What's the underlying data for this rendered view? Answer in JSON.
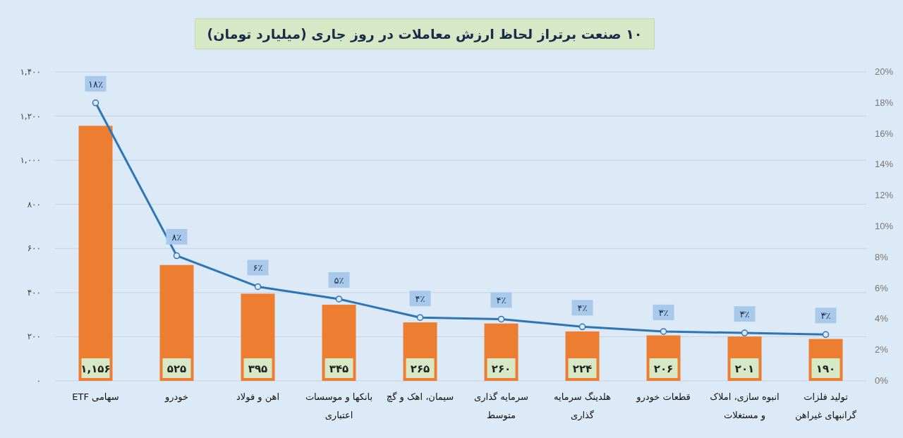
{
  "chart_data": {
    "type": "bar",
    "title": "۱۰ صنعت برتراز لحاظ ارزش معاملات در روز جاری (میلیارد تومان)",
    "categories": [
      "سهامی ETF",
      "خودرو",
      "اهن و فولاد",
      "بانکها و موسسات اعتباری",
      "سیمان، اهک و گچ",
      "سرمایه گذاری متوسط",
      "هلدینگ سرمایه گذاری",
      "قطعات خودرو",
      "انبوه سازی، املاک و مستغلات",
      "تولید فلزات گرانبهای غیراهن"
    ],
    "series": [
      {
        "type": "bar",
        "color": "#ed7d31",
        "values": [
          1156,
          525,
          395,
          345,
          265,
          260,
          224,
          206,
          201,
          190
        ],
        "value_labels": [
          "۱,۱۵۶",
          "۵۲۵",
          "۳۹۵",
          "۳۴۵",
          "۲۶۵",
          "۲۶۰",
          "۲۲۴",
          "۲۰۶",
          "۲۰۱",
          "۱۹۰"
        ]
      },
      {
        "type": "line",
        "axis": "y2",
        "color": "#2e75b6",
        "values": [
          18.0,
          8.1,
          6.1,
          5.3,
          4.1,
          4.0,
          3.5,
          3.2,
          3.1,
          3.0
        ],
        "value_labels": [
          "۱۸٪",
          "۸٪",
          "۶٪",
          "۵٪",
          "۴٪",
          "۴٪",
          "۴٪",
          "۳٪",
          "۳٪",
          "۳٪"
        ]
      }
    ],
    "ylim": [
      0,
      1400
    ],
    "yticks": [
      {
        "value": 0,
        "label": "۰"
      },
      {
        "value": 200,
        "label": "۲۰۰"
      },
      {
        "value": 400,
        "label": "۴۰۰"
      },
      {
        "value": 600,
        "label": "۶۰۰"
      },
      {
        "value": 800,
        "label": "۸۰۰"
      },
      {
        "value": 1000,
        "label": "۱,۰۰۰"
      },
      {
        "value": 1200,
        "label": "۱,۲۰۰"
      },
      {
        "value": 1400,
        "label": "۱,۴۰۰"
      }
    ],
    "y2lim": [
      0,
      20
    ],
    "y2ticks": [
      {
        "value": 0,
        "label": "0%"
      },
      {
        "value": 2,
        "label": "2%"
      },
      {
        "value": 4,
        "label": "4%"
      },
      {
        "value": 6,
        "label": "6%"
      },
      {
        "value": 8,
        "label": "8%"
      },
      {
        "value": 10,
        "label": "10%"
      },
      {
        "value": 12,
        "label": "12%"
      },
      {
        "value": 14,
        "label": "14%"
      },
      {
        "value": 16,
        "label": "16%"
      },
      {
        "value": 18,
        "label": "18%"
      },
      {
        "value": 20,
        "label": "20%"
      }
    ],
    "grid": "y",
    "marker": "circle"
  }
}
